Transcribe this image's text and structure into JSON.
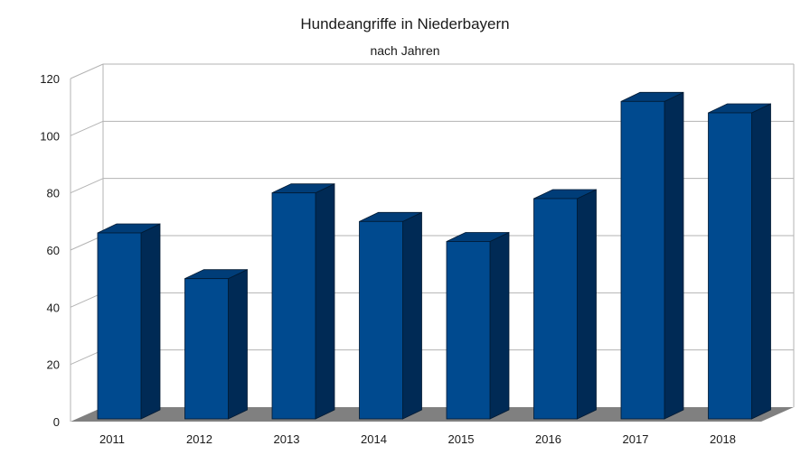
{
  "chart_data": {
    "type": "bar",
    "title": "Hundeangriffe in Niederbayern",
    "subtitle": "nach Jahren",
    "categories": [
      "2011",
      "2012",
      "2013",
      "2014",
      "2015",
      "2016",
      "2017",
      "2018"
    ],
    "values": [
      66,
      50,
      80,
      70,
      63,
      78,
      112,
      108
    ],
    "ylim": [
      0,
      120
    ],
    "yticks": [
      0,
      20,
      40,
      60,
      80,
      100,
      120
    ],
    "grid": true,
    "legend": "none",
    "style": "3d",
    "colors": {
      "bar_front": "#004a8f",
      "bar_top": "#003d78",
      "bar_side": "#002a55",
      "gridline": "#b3b3b3",
      "floor": "#808080"
    }
  }
}
